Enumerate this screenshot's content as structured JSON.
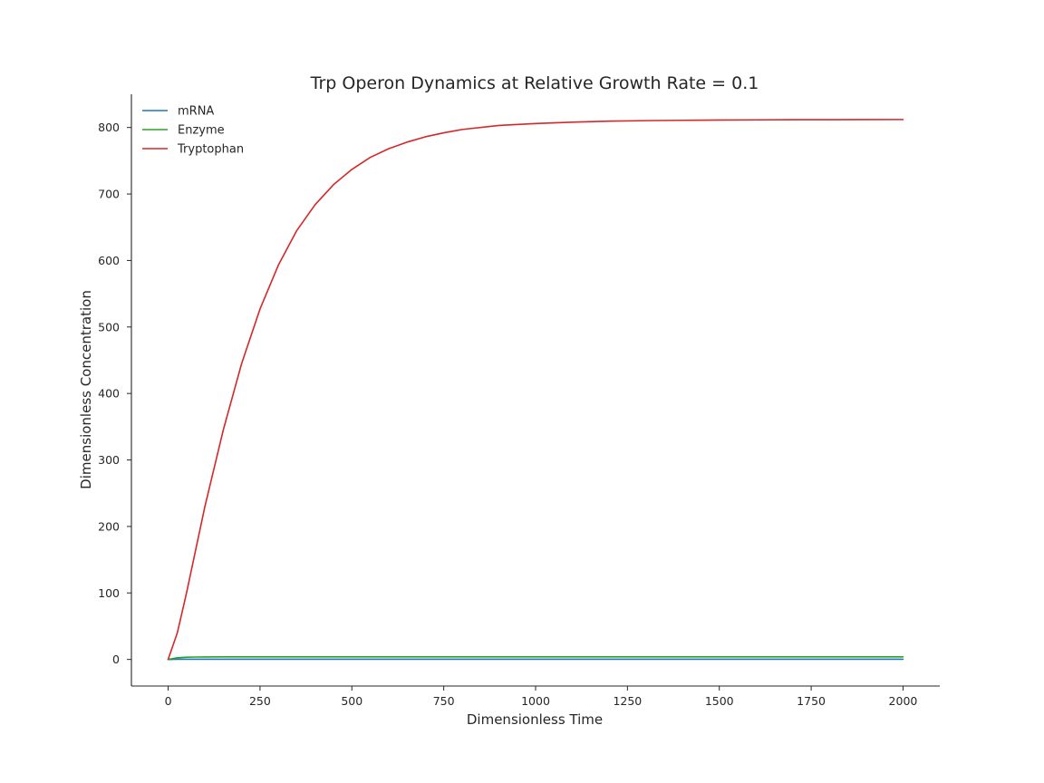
{
  "chart_data": {
    "type": "line",
    "title": "Trp Operon Dynamics at Relative Growth Rate = 0.1",
    "xlabel": "Dimensionless Time",
    "ylabel": "Dimensionless Concentration",
    "xlim": [
      -100,
      2100
    ],
    "ylim": [
      -40,
      850
    ],
    "xticks": [
      0,
      250,
      500,
      750,
      1000,
      1250,
      1500,
      1750,
      2000
    ],
    "yticks": [
      0,
      100,
      200,
      300,
      400,
      500,
      600,
      700,
      800
    ],
    "grid": false,
    "legend_position": "top-left",
    "x": [
      0,
      25,
      50,
      75,
      100,
      150,
      200,
      250,
      300,
      350,
      400,
      450,
      500,
      550,
      600,
      650,
      700,
      750,
      800,
      900,
      1000,
      1100,
      1200,
      1300,
      1400,
      1500,
      1600,
      1700,
      1800,
      1900,
      2000
    ],
    "series": [
      {
        "name": "mRNA",
        "color": "#1f77b4",
        "values": [
          0,
          0.3,
          0.3,
          0.3,
          0.3,
          0.3,
          0.3,
          0.3,
          0.3,
          0.3,
          0.3,
          0.3,
          0.3,
          0.3,
          0.3,
          0.3,
          0.3,
          0.3,
          0.3,
          0.3,
          0.3,
          0.3,
          0.3,
          0.3,
          0.3,
          0.3,
          0.3,
          0.3,
          0.3,
          0.3,
          0.3
        ]
      },
      {
        "name": "Enzyme",
        "color": "#2ca02c",
        "values": [
          0,
          2.5,
          3.3,
          3.6,
          3.7,
          3.8,
          3.8,
          3.8,
          3.8,
          3.8,
          3.8,
          3.8,
          3.8,
          3.8,
          3.8,
          3.8,
          3.8,
          3.8,
          3.8,
          3.8,
          3.8,
          3.8,
          3.8,
          3.8,
          3.8,
          3.8,
          3.8,
          3.8,
          3.8,
          3.8,
          3.8
        ]
      },
      {
        "name": "Tryptophan",
        "color": "#d62728",
        "values": [
          0,
          40,
          100,
          165,
          230,
          345,
          445,
          527,
          593,
          645,
          684,
          714,
          737,
          755,
          768,
          778,
          786,
          792,
          797,
          803,
          806,
          808,
          809.5,
          810.3,
          810.8,
          811.2,
          811.5,
          811.7,
          811.8,
          811.9,
          812
        ]
      }
    ]
  }
}
